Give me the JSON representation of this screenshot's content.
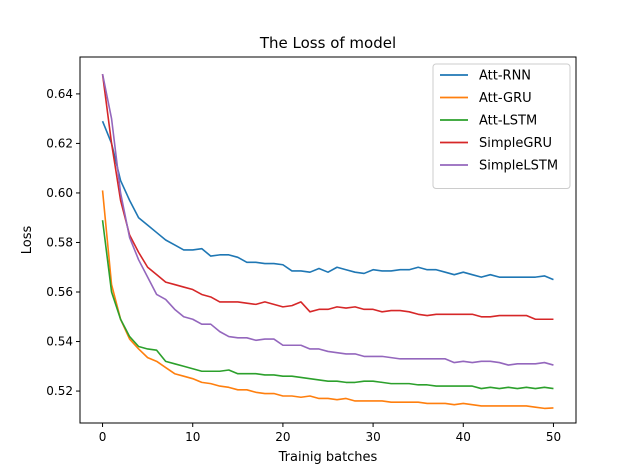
{
  "chart_data": {
    "type": "line",
    "title": "The Loss of model",
    "xlabel": "Trainig batches",
    "ylabel": "Loss",
    "xlim": [
      -2.5,
      52.5
    ],
    "ylim": [
      0.5071,
      0.6549
    ],
    "xticks": [
      0,
      10,
      20,
      30,
      40,
      50
    ],
    "yticks": [
      0.52,
      0.54,
      0.56,
      0.58,
      0.6,
      0.62,
      0.64
    ],
    "ytick_labels": [
      "0.52",
      "0.54",
      "0.56",
      "0.58",
      "0.60",
      "0.62",
      "0.64"
    ],
    "grid": false,
    "legend_position": "top-right",
    "x": [
      0,
      1,
      2,
      3,
      4,
      5,
      6,
      7,
      8,
      9,
      10,
      11,
      12,
      13,
      14,
      15,
      16,
      17,
      18,
      19,
      20,
      21,
      22,
      23,
      24,
      25,
      26,
      27,
      28,
      29,
      30,
      31,
      32,
      33,
      34,
      35,
      36,
      37,
      38,
      39,
      40,
      41,
      42,
      43,
      44,
      45,
      46,
      47,
      48,
      49,
      50
    ],
    "series": [
      {
        "name": "Att-RNN",
        "color": "#1f77b4",
        "values": [
          0.629,
          0.62,
          0.605,
          0.597,
          0.59,
          0.587,
          0.584,
          0.581,
          0.579,
          0.577,
          0.577,
          0.5775,
          0.5745,
          0.575,
          0.575,
          0.574,
          0.572,
          0.572,
          0.5715,
          0.5715,
          0.571,
          0.5685,
          0.5685,
          0.568,
          0.5695,
          0.568,
          0.57,
          0.569,
          0.568,
          0.5675,
          0.569,
          0.5685,
          0.5685,
          0.569,
          0.569,
          0.57,
          0.569,
          0.569,
          0.568,
          0.567,
          0.568,
          0.567,
          0.566,
          0.567,
          0.566,
          0.566,
          0.566,
          0.566,
          0.566,
          0.5665,
          0.565
        ]
      },
      {
        "name": "Att-GRU",
        "color": "#ff7f0e",
        "values": [
          0.601,
          0.563,
          0.549,
          0.541,
          0.537,
          0.5335,
          0.532,
          0.5295,
          0.527,
          0.526,
          0.525,
          0.5235,
          0.523,
          0.522,
          0.5215,
          0.5205,
          0.5205,
          0.5195,
          0.519,
          0.519,
          0.518,
          0.518,
          0.5175,
          0.518,
          0.517,
          0.517,
          0.5165,
          0.517,
          0.516,
          0.516,
          0.516,
          0.516,
          0.5155,
          0.5155,
          0.5155,
          0.5155,
          0.515,
          0.515,
          0.515,
          0.5145,
          0.515,
          0.5145,
          0.514,
          0.514,
          0.514,
          0.514,
          0.514,
          0.514,
          0.5135,
          0.513,
          0.5132
        ]
      },
      {
        "name": "Att-LSTM",
        "color": "#2ca02c",
        "values": [
          0.589,
          0.56,
          0.549,
          0.542,
          0.538,
          0.537,
          0.5365,
          0.532,
          0.531,
          0.53,
          0.529,
          0.528,
          0.528,
          0.528,
          0.5285,
          0.527,
          0.527,
          0.527,
          0.5265,
          0.5265,
          0.526,
          0.526,
          0.5255,
          0.525,
          0.5245,
          0.524,
          0.524,
          0.5235,
          0.5235,
          0.524,
          0.524,
          0.5235,
          0.523,
          0.523,
          0.523,
          0.5225,
          0.5225,
          0.522,
          0.522,
          0.522,
          0.522,
          0.522,
          0.521,
          0.5215,
          0.521,
          0.5215,
          0.521,
          0.5215,
          0.521,
          0.5215,
          0.521
        ]
      },
      {
        "name": "SimpleGRU",
        "color": "#d62728",
        "values": [
          0.648,
          0.62,
          0.597,
          0.583,
          0.576,
          0.57,
          0.567,
          0.564,
          0.563,
          0.562,
          0.561,
          0.559,
          0.558,
          0.556,
          0.556,
          0.556,
          0.5555,
          0.555,
          0.556,
          0.555,
          0.554,
          0.5545,
          0.556,
          0.552,
          0.553,
          0.553,
          0.554,
          0.5535,
          0.554,
          0.553,
          0.553,
          0.552,
          0.5525,
          0.5525,
          0.552,
          0.551,
          0.5505,
          0.551,
          0.551,
          0.551,
          0.551,
          0.551,
          0.55,
          0.55,
          0.5505,
          0.5505,
          0.5505,
          0.5505,
          0.549,
          0.549,
          0.549
        ]
      },
      {
        "name": "SimpleLSTM",
        "color": "#9467bd",
        "values": [
          0.648,
          0.63,
          0.6,
          0.582,
          0.573,
          0.566,
          0.559,
          0.557,
          0.553,
          0.55,
          0.549,
          0.547,
          0.547,
          0.544,
          0.542,
          0.5415,
          0.5415,
          0.5405,
          0.541,
          0.541,
          0.5385,
          0.5385,
          0.5385,
          0.537,
          0.537,
          0.536,
          0.5355,
          0.535,
          0.535,
          0.534,
          0.534,
          0.534,
          0.5335,
          0.533,
          0.533,
          0.533,
          0.533,
          0.533,
          0.533,
          0.5315,
          0.532,
          0.5315,
          0.532,
          0.532,
          0.5315,
          0.5305,
          0.531,
          0.531,
          0.531,
          0.5315,
          0.5305
        ]
      }
    ]
  }
}
